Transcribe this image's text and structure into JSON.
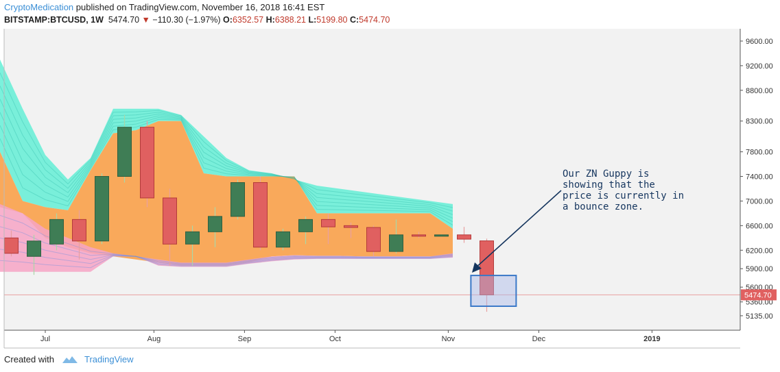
{
  "header": {
    "author": "CryptoMedication",
    "published": "published on TradingView.com, November 16, 2018 16:41 EST"
  },
  "ticker": {
    "symbol": "BITSTAMP:BTCUSD, 1W",
    "last": "5474.70",
    "arrow": "▼",
    "change": "−110.30 (−1.97%)",
    "o_label": "O:",
    "o": "6352.57",
    "h_label": "H:",
    "h": "6388.21",
    "l_label": "L:",
    "l": "5199.80",
    "c_label": "C:",
    "c": "5474.70"
  },
  "footer": {
    "created_with": "Created with",
    "brand": "TradingView"
  },
  "colors": {
    "up": "#3f7d55",
    "down": "#e06060",
    "orange": "#f9a95b",
    "cyan": "#64eed6",
    "pink": "#f7a5c5",
    "box": "#3a78c8",
    "grid": "#f2f2f2"
  },
  "chart_data": {
    "type": "candlestick",
    "ylim": [
      4900,
      9800
    ],
    "y_ticks": [
      9600,
      9200,
      8800,
      8300,
      7800,
      7400,
      7000,
      6600,
      6200,
      5900,
      5600,
      5360,
      5135
    ],
    "y_tick_labels": [
      "9600.00",
      "9200.00",
      "8800.00",
      "8300.00",
      "7800.00",
      "7400.00",
      "7000.00",
      "6600.00",
      "6200.00",
      "5900.00",
      "5600.00",
      "5360.00",
      "5135.00"
    ],
    "x_labels": [
      "Jul",
      "Aug",
      "Sep",
      "Oct",
      "Nov",
      "Dec",
      "2019"
    ],
    "x_label_week": [
      2,
      6.8,
      10.8,
      14.8,
      19.8,
      23.8,
      28.8
    ],
    "last_price": 5474.7,
    "last_price_label": "5474.70",
    "candles": [
      {
        "o": 6400,
        "h": 6520,
        "l": 6100,
        "c": 6150
      },
      {
        "o": 6100,
        "h": 6450,
        "l": 5800,
        "c": 6350
      },
      {
        "o": 6300,
        "h": 6800,
        "l": 6200,
        "c": 6700
      },
      {
        "o": 6700,
        "h": 6850,
        "l": 6050,
        "c": 6350
      },
      {
        "o": 6350,
        "h": 7450,
        "l": 6300,
        "c": 7400
      },
      {
        "o": 7400,
        "h": 8400,
        "l": 7300,
        "c": 8200
      },
      {
        "o": 8200,
        "h": 8300,
        "l": 6900,
        "c": 7050
      },
      {
        "o": 7050,
        "h": 7200,
        "l": 5950,
        "c": 6300
      },
      {
        "o": 6300,
        "h": 6600,
        "l": 5950,
        "c": 6500
      },
      {
        "o": 6500,
        "h": 6900,
        "l": 6250,
        "c": 6750
      },
      {
        "o": 6750,
        "h": 7350,
        "l": 6700,
        "c": 7300
      },
      {
        "o": 7300,
        "h": 7400,
        "l": 6200,
        "c": 6250
      },
      {
        "o": 6250,
        "h": 6550,
        "l": 6200,
        "c": 6500
      },
      {
        "o": 6500,
        "h": 6750,
        "l": 6300,
        "c": 6700
      },
      {
        "o": 6700,
        "h": 6800,
        "l": 6300,
        "c": 6580
      },
      {
        "o": 6600,
        "h": 6650,
        "l": 6400,
        "c": 6570
      },
      {
        "o": 6570,
        "h": 6600,
        "l": 6100,
        "c": 6180
      },
      {
        "o": 6180,
        "h": 6700,
        "l": 6150,
        "c": 6450
      },
      {
        "o": 6450,
        "h": 6500,
        "l": 6400,
        "c": 6440
      },
      {
        "o": 6440,
        "h": 6460,
        "l": 6420,
        "c": 6450
      },
      {
        "o": 6450,
        "h": 6580,
        "l": 6320,
        "c": 6380
      },
      {
        "o": 6352.57,
        "h": 6388.21,
        "l": 5199.8,
        "c": 5474.7
      }
    ],
    "bands": {
      "cyan_top": [
        9300,
        8500,
        7750,
        7350,
        7700,
        8500,
        8500,
        8500,
        8400,
        8050,
        7700,
        7500,
        7450,
        7350,
        7250,
        7200,
        7150,
        7100,
        7050,
        7000,
        6950
      ],
      "orange_top": [
        7800,
        7000,
        6900,
        6850,
        7500,
        8100,
        8150,
        8300,
        8300,
        7450,
        7400,
        7400,
        7400,
        7400,
        6800,
        6800,
        6800,
        6800,
        6800,
        6800,
        6550
      ],
      "orange_bot": [
        6900,
        6800,
        6400,
        6250,
        6150,
        6100,
        6050,
        6000,
        5950,
        5950,
        5950,
        6000,
        6100,
        6120,
        6110,
        6110,
        6100,
        6100,
        6100,
        6100,
        6100
      ],
      "pink_top": [
        6950,
        6800,
        6550,
        6400,
        6250,
        6150,
        6100,
        6050,
        6000,
        6000,
        6000,
        6050,
        6100,
        6120,
        6110,
        6110,
        6100,
        6100,
        6100,
        6100,
        6150
      ],
      "pink_bot": [
        5850,
        5850,
        5850,
        5850,
        5850,
        6100,
        6100,
        5950,
        5930,
        5930,
        5930,
        5980,
        6020,
        6050,
        6060,
        6060,
        6060,
        6060,
        6060,
        6060,
        6080
      ]
    },
    "box_week_range": [
      20.8,
      22.8
    ],
    "box_price_range": [
      5290,
      5790
    ],
    "annotation": [
      "Our ZN Guppy is",
      "showing that the",
      "price is currently in",
      "a bounce zone."
    ]
  }
}
